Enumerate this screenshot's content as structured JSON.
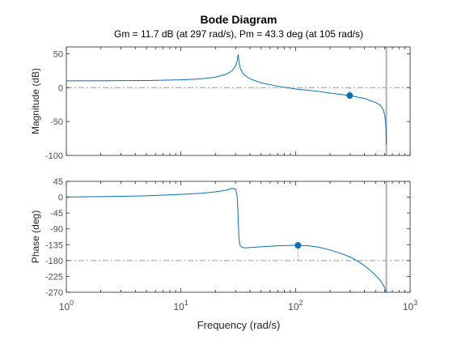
{
  "chart_data": {
    "type": "line",
    "title": "Bode Diagram",
    "subtitle": "Gm = 11.7 dB (at 297 rad/s),  Pm = 43.3 deg (at 105 rad/s)",
    "xlabel": "Frequency  (rad/s)",
    "xscale": "log",
    "xlim": [
      1,
      1000
    ],
    "x_ticks": [
      {
        "value": 1,
        "base": "10",
        "exp": "0"
      },
      {
        "value": 10,
        "base": "10",
        "exp": "1"
      },
      {
        "value": 100,
        "base": "10",
        "exp": "2"
      },
      {
        "value": 1000,
        "base": "10",
        "exp": "3"
      }
    ],
    "colors": {
      "line": "#0072bd",
      "marker": "#0072bd",
      "ref": "#999999",
      "axis": "#262626",
      "tick_text": "#4d4d4d",
      "asymptote": "#b0b0b0"
    },
    "panels": [
      {
        "id": "magnitude",
        "ylabel": "Magnitude (dB)",
        "ylim": [
          -100,
          60
        ],
        "yticks": [
          50,
          0,
          -50,
          -100
        ],
        "reference": {
          "y": 0
        },
        "marker": {
          "x": 297,
          "y": -11.7
        },
        "asymptote_x": 620,
        "series": {
          "x": [
            1,
            2,
            5,
            10,
            15,
            20,
            25,
            28,
            30,
            31,
            31.6,
            32,
            33,
            35,
            40,
            50,
            70,
            100,
            150,
            200,
            297,
            400,
            500,
            550,
            580,
            600,
            610,
            615,
            618,
            620
          ],
          "y": [
            10,
            10.2,
            10.5,
            11.5,
            13,
            15.5,
            20,
            25,
            32,
            40,
            49,
            40,
            28,
            20,
            13,
            7,
            2,
            -2,
            -5,
            -8,
            -11.7,
            -16,
            -22,
            -26,
            -32,
            -40,
            -50,
            -60,
            -70,
            -84
          ]
        }
      },
      {
        "id": "phase",
        "ylabel": "Phase (deg)",
        "ylim": [
          -270,
          45
        ],
        "yticks": [
          45,
          0,
          -45,
          -90,
          -135,
          -180,
          -225,
          -270
        ],
        "reference": {
          "y": -180
        },
        "marker": {
          "x": 105,
          "y": -136.7
        },
        "asymptote_x": 620,
        "series": {
          "x": [
            1,
            2,
            5,
            10,
            15,
            20,
            25,
            28,
            30,
            31,
            31.6,
            32,
            32.5,
            33,
            34,
            36,
            40,
            50,
            70,
            100,
            130,
            160,
            200,
            250,
            300,
            350,
            400,
            450,
            500,
            550,
            580,
            600,
            610,
            620
          ],
          "y": [
            0.5,
            1.5,
            4,
            8,
            11,
            15,
            20,
            25,
            23,
            0,
            -60,
            -110,
            -133,
            -138,
            -142,
            -144,
            -143,
            -141,
            -138,
            -136.7,
            -138,
            -142,
            -150,
            -160,
            -170,
            -182,
            -195,
            -208,
            -222,
            -237,
            -248,
            -258,
            -264,
            -270
          ]
        }
      }
    ]
  }
}
